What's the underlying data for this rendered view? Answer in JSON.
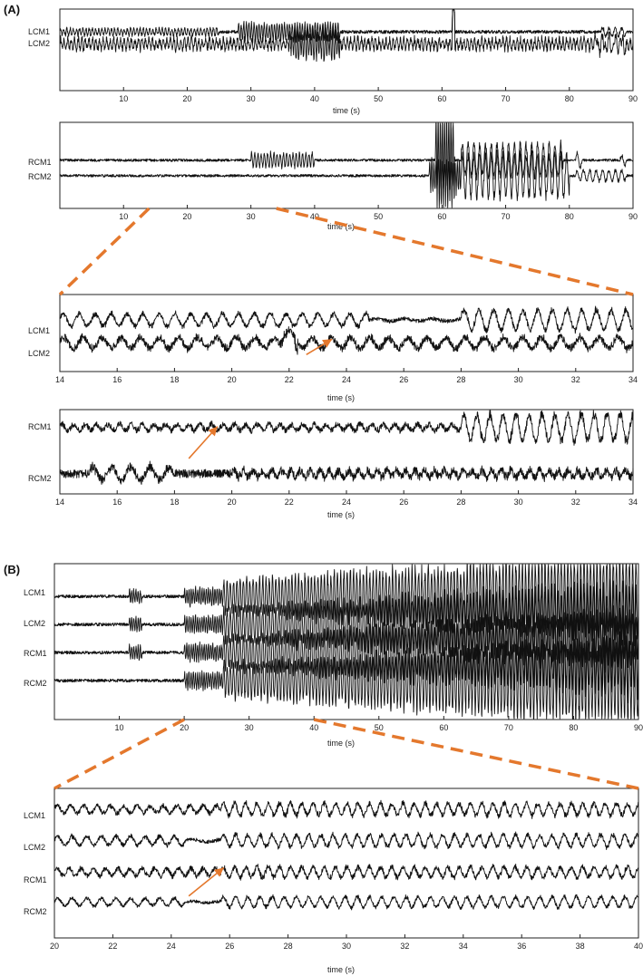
{
  "panel_labels": {
    "a": "(A)",
    "b": "(B)"
  },
  "colors": {
    "trace": "#111111",
    "axis": "#222222",
    "annotation": "#e4782d",
    "background": "#ffffff"
  },
  "chart_data": [
    {
      "id": "A-overview-left",
      "panel": "A",
      "type": "line",
      "title": "",
      "xlabel": "time (s)",
      "ylabel": "",
      "xlim": [
        0,
        90
      ],
      "xticks": [
        10,
        20,
        30,
        40,
        50,
        60,
        70,
        80,
        90
      ],
      "grid": false,
      "series": [
        {
          "name": "LCM1",
          "baseline": 0.72,
          "noise": 0.02,
          "events": [
            {
              "t0": 0,
              "t1": 25,
              "amp": 0.04,
              "freq": 2.0
            },
            {
              "t0": 28,
              "t1": 44,
              "amp": 0.1,
              "freq": 2.5
            },
            {
              "t0": 61.6,
              "t1": 62,
              "amp": 0.55,
              "freq": 1.0
            },
            {
              "t0": 85,
              "t1": 89,
              "amp": 0.05,
              "freq": 1.0
            }
          ]
        },
        {
          "name": "LCM2",
          "baseline": 0.57,
          "noise": 0.04,
          "events": [
            {
              "t0": 0,
              "t1": 90,
              "amp": 0.06,
              "freq": 1.8
            },
            {
              "t0": 36,
              "t1": 44,
              "amp": 0.16,
              "freq": 2.5
            },
            {
              "t0": 61.6,
              "t1": 62,
              "amp": 0.8,
              "freq": 1.0
            },
            {
              "t0": 84,
              "t1": 89,
              "amp": 0.08,
              "freq": 1.0
            }
          ]
        }
      ]
    },
    {
      "id": "A-overview-right",
      "panel": "A",
      "type": "line",
      "title": "",
      "xlabel": "time (s)",
      "ylabel": "",
      "xlim": [
        0,
        90
      ],
      "xticks": [
        10,
        20,
        30,
        40,
        50,
        60,
        70,
        80,
        90
      ],
      "grid": false,
      "series": [
        {
          "name": "RCM1",
          "baseline": 0.56,
          "noise": 0.015,
          "events": [
            {
              "t0": 30,
              "t1": 40,
              "amp": 0.08,
              "freq": 2.0
            },
            {
              "t0": 59,
              "t1": 62,
              "amp": 0.55,
              "freq": 3.0
            },
            {
              "t0": 63,
              "t1": 79,
              "amp": 0.18,
              "freq": 1.1
            },
            {
              "t0": 81,
              "t1": 82,
              "amp": 0.09,
              "freq": 1.0
            },
            {
              "t0": 88,
              "t1": 89,
              "amp": 0.06,
              "freq": 1.0
            }
          ]
        },
        {
          "name": "RCM2",
          "baseline": 0.38,
          "noise": 0.015,
          "events": [
            {
              "t0": 58,
              "t1": 63,
              "amp": 0.18,
              "freq": 3.0
            },
            {
              "t0": 63,
              "t1": 80,
              "amp": 0.24,
              "freq": 1.1
            },
            {
              "t0": 81,
              "t1": 89,
              "amp": 0.06,
              "freq": 1.0
            }
          ]
        }
      ]
    },
    {
      "id": "A-zoom-left",
      "panel": "A",
      "type": "line",
      "title": "",
      "xlabel": "time (s)",
      "ylabel": "",
      "xlim": [
        14,
        34
      ],
      "xticks": [
        14,
        16,
        18,
        20,
        22,
        24,
        26,
        28,
        30,
        32,
        34
      ],
      "grid": false,
      "series": [
        {
          "name": "LCM1",
          "baseline": 0.67,
          "noise": 0.025,
          "events": [
            {
              "t0": 14,
              "t1": 24.8,
              "amp": 0.08,
              "freq": 1.8
            },
            {
              "t0": 24.8,
              "t1": 28,
              "amp": 0.015,
              "freq": 1.0
            },
            {
              "t0": 28,
              "t1": 34,
              "amp": 0.13,
              "freq": 1.95
            }
          ]
        },
        {
          "name": "LCM2",
          "baseline": 0.37,
          "noise": 0.045,
          "events": [
            {
              "t0": 14,
              "t1": 34,
              "amp": 0.07,
              "freq": 1.5
            },
            {
              "t0": 21.7,
              "t1": 22.3,
              "amp": 0.18,
              "freq": 1.0
            }
          ]
        }
      ]
    },
    {
      "id": "A-zoom-right",
      "panel": "A",
      "type": "line",
      "title": "",
      "xlabel": "time (s)",
      "ylabel": "",
      "xlim": [
        14,
        34
      ],
      "xticks": [
        14,
        16,
        18,
        20,
        22,
        24,
        26,
        28,
        30,
        32,
        34
      ],
      "grid": false,
      "series": [
        {
          "name": "RCM1",
          "baseline": 0.79,
          "noise": 0.035,
          "events": [
            {
              "t0": 14,
              "t1": 28,
              "amp": 0.035,
              "freq": 2.5
            },
            {
              "t0": 28,
              "t1": 34,
              "amp": 0.16,
              "freq": 2.2
            }
          ]
        },
        {
          "name": "RCM2",
          "baseline": 0.24,
          "noise": 0.05,
          "events": [
            {
              "t0": 15,
              "t1": 18,
              "amp": 0.08,
              "freq": 1.5
            },
            {
              "t0": 20,
              "t1": 34,
              "amp": 0.04,
              "freq": 3.0
            }
          ]
        }
      ]
    },
    {
      "id": "B-overview",
      "panel": "B",
      "type": "line",
      "title": "",
      "xlabel": "time (s)",
      "ylabel": "",
      "xlim": [
        0,
        90
      ],
      "xticks": [
        10,
        20,
        30,
        40,
        50,
        60,
        70,
        80,
        90
      ],
      "grid": false,
      "series": [
        {
          "name": "LCM1",
          "baseline": 0.79,
          "noise": 0.01,
          "events": [
            {
              "t0": 11.5,
              "t1": 13.5,
              "amp": 0.04,
              "freq": 3.0
            },
            {
              "t0": 20,
              "t1": 26,
              "amp": 0.05,
              "freq": 3.0
            },
            {
              "t0": 26,
              "t1": 90,
              "amp": 0.1,
              "freq": 2.0,
              "grow": 2.6
            }
          ]
        },
        {
          "name": "LCM2",
          "baseline": 0.61,
          "noise": 0.01,
          "events": [
            {
              "t0": 11.5,
              "t1": 13.5,
              "amp": 0.04,
              "freq": 3.0
            },
            {
              "t0": 20,
              "t1": 26,
              "amp": 0.05,
              "freq": 3.0
            },
            {
              "t0": 26,
              "t1": 90,
              "amp": 0.1,
              "freq": 2.0,
              "grow": 2.6
            }
          ]
        },
        {
          "name": "RCM1",
          "baseline": 0.43,
          "noise": 0.01,
          "events": [
            {
              "t0": 11.5,
              "t1": 13.5,
              "amp": 0.04,
              "freq": 3.0
            },
            {
              "t0": 20,
              "t1": 26,
              "amp": 0.05,
              "freq": 3.0
            },
            {
              "t0": 26,
              "t1": 90,
              "amp": 0.1,
              "freq": 2.0,
              "grow": 2.6
            }
          ]
        },
        {
          "name": "RCM2",
          "baseline": 0.25,
          "noise": 0.01,
          "events": [
            {
              "t0": 20,
              "t1": 26,
              "amp": 0.05,
              "freq": 3.0
            },
            {
              "t0": 26,
              "t1": 90,
              "amp": 0.1,
              "freq": 2.0,
              "grow": 2.6
            }
          ]
        }
      ]
    },
    {
      "id": "B-zoom",
      "panel": "B",
      "type": "line",
      "title": "",
      "xlabel": "time (s)",
      "ylabel": "",
      "xlim": [
        20,
        40
      ],
      "xticks": [
        20,
        22,
        24,
        26,
        28,
        30,
        32,
        34,
        36,
        38,
        40
      ],
      "grid": false,
      "series": [
        {
          "name": "LCM1",
          "baseline": 0.86,
          "noise": 0.015,
          "events": [
            {
              "t0": 20,
              "t1": 25.7,
              "amp": 0.025,
              "freq": 2.2
            },
            {
              "t0": 25.7,
              "t1": 40,
              "amp": 0.04,
              "freq": 2.6
            }
          ]
        },
        {
          "name": "LCM2",
          "baseline": 0.65,
          "noise": 0.012,
          "events": [
            {
              "t0": 20,
              "t1": 24.5,
              "amp": 0.03,
              "freq": 2.0
            },
            {
              "t0": 24.5,
              "t1": 25.7,
              "amp": 0.008,
              "freq": 1.0
            },
            {
              "t0": 25.7,
              "t1": 40,
              "amp": 0.04,
              "freq": 2.4
            }
          ]
        },
        {
          "name": "RCM1",
          "baseline": 0.44,
          "noise": 0.015,
          "events": [
            {
              "t0": 20,
              "t1": 25.7,
              "amp": 0.025,
              "freq": 2.4
            },
            {
              "t0": 25.7,
              "t1": 40,
              "amp": 0.035,
              "freq": 2.6
            }
          ]
        },
        {
          "name": "RCM2",
          "baseline": 0.24,
          "noise": 0.01,
          "events": [
            {
              "t0": 20,
              "t1": 24.5,
              "amp": 0.025,
              "freq": 2.0
            },
            {
              "t0": 24.5,
              "t1": 25.7,
              "amp": 0.006,
              "freq": 1.0
            },
            {
              "t0": 25.7,
              "t1": 40,
              "amp": 0.035,
              "freq": 2.4
            }
          ]
        }
      ]
    }
  ],
  "zoom_windows": [
    {
      "from": "A-overview-right",
      "to": "A-zoom-left",
      "range": [
        14,
        34
      ]
    },
    {
      "from": "B-overview",
      "to": "B-zoom",
      "range": [
        20,
        40
      ]
    }
  ],
  "annotations": [
    {
      "chart": "A-zoom-left",
      "kind": "arrow",
      "start": [
        22.6,
        0.22
      ],
      "end": [
        23.5,
        0.42
      ]
    },
    {
      "chart": "A-zoom-right",
      "kind": "arrow",
      "start": [
        18.5,
        0.42
      ],
      "end": [
        19.5,
        0.8
      ]
    },
    {
      "chart": "B-zoom",
      "kind": "arrow",
      "start": [
        24.6,
        0.28
      ],
      "end": [
        25.8,
        0.47
      ]
    }
  ]
}
